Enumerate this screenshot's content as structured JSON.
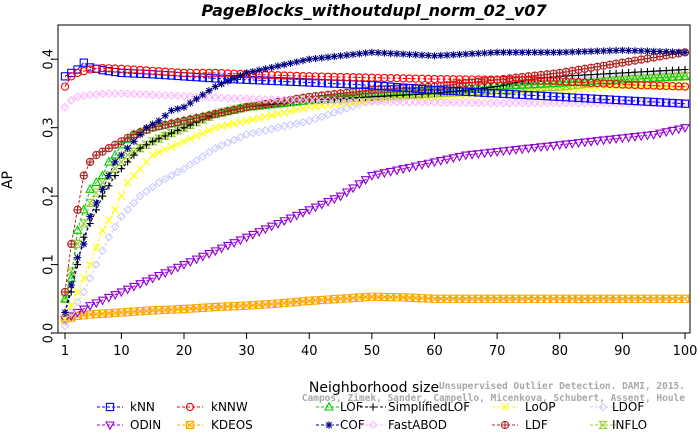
{
  "chart_data": {
    "type": "line",
    "title": "PageBlocks_withoutdupl_norm_02_v07",
    "xlabel": "Neighborhood size",
    "ylabel": "AP",
    "xlim": [
      1,
      100
    ],
    "ylim": [
      0,
      0.45
    ],
    "xticks": [
      1,
      10,
      20,
      30,
      40,
      50,
      60,
      70,
      80,
      90,
      100
    ],
    "yticks": [
      0.0,
      0.1,
      0.2,
      0.3,
      0.4
    ],
    "ytick_labels": [
      "0.0",
      "0.1",
      "0.2",
      "0.3",
      "0.4"
    ],
    "grid": false,
    "legend_position": "bottom",
    "watermark": "Unsupervised Outlier Detection. DAMI, 2015. Campos, Zimek, Sander, Campello, Micenkova, Schubert, Assent, Houle",
    "series": [
      {
        "name": "kNN",
        "color": "#0000ff",
        "marker": "square",
        "points": [
          [
            1,
            0.375
          ],
          [
            2,
            0.38
          ],
          [
            3,
            0.385
          ],
          [
            4,
            0.395
          ],
          [
            5,
            0.388
          ],
          [
            7,
            0.384
          ],
          [
            10,
            0.38
          ],
          [
            15,
            0.378
          ],
          [
            20,
            0.375
          ],
          [
            25,
            0.372
          ],
          [
            30,
            0.37
          ],
          [
            40,
            0.366
          ],
          [
            50,
            0.362
          ],
          [
            60,
            0.355
          ],
          [
            70,
            0.35
          ],
          [
            80,
            0.345
          ],
          [
            90,
            0.34
          ],
          [
            100,
            0.335
          ]
        ]
      },
      {
        "name": "kNNW",
        "color": "#ff0000",
        "marker": "circle",
        "points": [
          [
            1,
            0.36
          ],
          [
            2,
            0.375
          ],
          [
            3,
            0.38
          ],
          [
            5,
            0.385
          ],
          [
            7,
            0.387
          ],
          [
            10,
            0.386
          ],
          [
            15,
            0.383
          ],
          [
            20,
            0.38
          ],
          [
            25,
            0.38
          ],
          [
            30,
            0.378
          ],
          [
            40,
            0.375
          ],
          [
            50,
            0.373
          ],
          [
            60,
            0.371
          ],
          [
            70,
            0.37
          ],
          [
            80,
            0.368
          ],
          [
            90,
            0.363
          ],
          [
            100,
            0.36
          ]
        ]
      },
      {
        "name": "LOF",
        "color": "#00cc00",
        "marker": "triangle-up",
        "points": [
          [
            1,
            0.05
          ],
          [
            2,
            0.08
          ],
          [
            3,
            0.15
          ],
          [
            4,
            0.18
          ],
          [
            5,
            0.21
          ],
          [
            6,
            0.22
          ],
          [
            7,
            0.23
          ],
          [
            8,
            0.25
          ],
          [
            9,
            0.26
          ],
          [
            10,
            0.275
          ],
          [
            12,
            0.29
          ],
          [
            15,
            0.3
          ],
          [
            20,
            0.31
          ],
          [
            25,
            0.32
          ],
          [
            30,
            0.33
          ],
          [
            40,
            0.34
          ],
          [
            50,
            0.35
          ],
          [
            60,
            0.355
          ],
          [
            70,
            0.36
          ],
          [
            80,
            0.365
          ],
          [
            90,
            0.37
          ],
          [
            100,
            0.375
          ]
        ]
      },
      {
        "name": "SimplifiedLOF",
        "color": "#000000",
        "marker": "plus",
        "points": [
          [
            1,
            0.03
          ],
          [
            2,
            0.06
          ],
          [
            3,
            0.1
          ],
          [
            4,
            0.14
          ],
          [
            5,
            0.16
          ],
          [
            7,
            0.2
          ],
          [
            9,
            0.23
          ],
          [
            11,
            0.25
          ],
          [
            13,
            0.27
          ],
          [
            15,
            0.28
          ],
          [
            20,
            0.3
          ],
          [
            25,
            0.32
          ],
          [
            30,
            0.33
          ],
          [
            35,
            0.335
          ],
          [
            40,
            0.34
          ],
          [
            50,
            0.345
          ],
          [
            60,
            0.35
          ],
          [
            70,
            0.36
          ],
          [
            75,
            0.37
          ],
          [
            80,
            0.375
          ],
          [
            90,
            0.38
          ],
          [
            100,
            0.385
          ]
        ]
      },
      {
        "name": "LoOP",
        "color": "#ffff00",
        "marker": "x",
        "points": [
          [
            1,
            0.02
          ],
          [
            2,
            0.04
          ],
          [
            3,
            0.06
          ],
          [
            5,
            0.1
          ],
          [
            7,
            0.15
          ],
          [
            9,
            0.18
          ],
          [
            11,
            0.22
          ],
          [
            13,
            0.24
          ],
          [
            15,
            0.26
          ],
          [
            20,
            0.28
          ],
          [
            25,
            0.3
          ],
          [
            30,
            0.31
          ],
          [
            40,
            0.33
          ],
          [
            50,
            0.34
          ],
          [
            60,
            0.345
          ],
          [
            70,
            0.35
          ],
          [
            80,
            0.355
          ],
          [
            90,
            0.36
          ],
          [
            100,
            0.36
          ]
        ]
      },
      {
        "name": "LDOF",
        "color": "#ccccff",
        "marker": "diamond",
        "points": [
          [
            1,
            0.01
          ],
          [
            2,
            0.03
          ],
          [
            4,
            0.06
          ],
          [
            6,
            0.1
          ],
          [
            8,
            0.14
          ],
          [
            10,
            0.17
          ],
          [
            13,
            0.2
          ],
          [
            16,
            0.22
          ],
          [
            20,
            0.24
          ],
          [
            25,
            0.27
          ],
          [
            30,
            0.29
          ],
          [
            35,
            0.3
          ],
          [
            40,
            0.31
          ],
          [
            50,
            0.34
          ],
          [
            60,
            0.35
          ],
          [
            70,
            0.36
          ],
          [
            80,
            0.37
          ],
          [
            90,
            0.375
          ],
          [
            100,
            0.38
          ]
        ]
      },
      {
        "name": "ODIN",
        "color": "#9400d3",
        "marker": "triangle-down",
        "points": [
          [
            1,
            0.02
          ],
          [
            5,
            0.04
          ],
          [
            10,
            0.06
          ],
          [
            15,
            0.08
          ],
          [
            20,
            0.1
          ],
          [
            25,
            0.12
          ],
          [
            30,
            0.14
          ],
          [
            35,
            0.16
          ],
          [
            40,
            0.18
          ],
          [
            45,
            0.2
          ],
          [
            50,
            0.23
          ],
          [
            55,
            0.24
          ],
          [
            60,
            0.25
          ],
          [
            65,
            0.26
          ],
          [
            70,
            0.265
          ],
          [
            75,
            0.27
          ],
          [
            80,
            0.275
          ],
          [
            85,
            0.28
          ],
          [
            90,
            0.285
          ],
          [
            95,
            0.29
          ],
          [
            100,
            0.3
          ]
        ]
      },
      {
        "name": "KDEOS",
        "color": "#ffa500",
        "marker": "square-x",
        "points": [
          [
            1,
            0.02
          ],
          [
            3,
            0.025
          ],
          [
            5,
            0.027
          ],
          [
            10,
            0.03
          ],
          [
            15,
            0.033
          ],
          [
            20,
            0.035
          ],
          [
            25,
            0.038
          ],
          [
            30,
            0.04
          ],
          [
            35,
            0.043
          ],
          [
            40,
            0.047
          ],
          [
            45,
            0.05
          ],
          [
            50,
            0.053
          ],
          [
            55,
            0.052
          ],
          [
            60,
            0.05
          ],
          [
            70,
            0.05
          ],
          [
            80,
            0.05
          ],
          [
            90,
            0.05
          ],
          [
            100,
            0.05
          ]
        ]
      },
      {
        "name": "COF",
        "color": "#000080",
        "marker": "asterisk",
        "points": [
          [
            1,
            0.03
          ],
          [
            2,
            0.07
          ],
          [
            3,
            0.11
          ],
          [
            4,
            0.13
          ],
          [
            5,
            0.17
          ],
          [
            6,
            0.19
          ],
          [
            7,
            0.21
          ],
          [
            8,
            0.23
          ],
          [
            9,
            0.25
          ],
          [
            10,
            0.26
          ],
          [
            12,
            0.28
          ],
          [
            14,
            0.3
          ],
          [
            16,
            0.31
          ],
          [
            18,
            0.325
          ],
          [
            20,
            0.33
          ],
          [
            25,
            0.36
          ],
          [
            30,
            0.38
          ],
          [
            35,
            0.39
          ],
          [
            40,
            0.4
          ],
          [
            50,
            0.41
          ],
          [
            60,
            0.405
          ],
          [
            70,
            0.41
          ],
          [
            80,
            0.41
          ],
          [
            90,
            0.413
          ],
          [
            100,
            0.41
          ]
        ]
      },
      {
        "name": "FastABOD",
        "color": "#ffb6ff",
        "marker": "diamond",
        "points": [
          [
            1,
            0.33
          ],
          [
            2,
            0.34
          ],
          [
            3,
            0.345
          ],
          [
            5,
            0.348
          ],
          [
            8,
            0.35
          ],
          [
            10,
            0.35
          ],
          [
            15,
            0.348
          ],
          [
            20,
            0.346
          ],
          [
            25,
            0.344
          ],
          [
            30,
            0.342
          ],
          [
            40,
            0.34
          ],
          [
            50,
            0.338
          ],
          [
            60,
            0.337
          ],
          [
            70,
            0.336
          ],
          [
            80,
            0.336
          ],
          [
            90,
            0.336
          ],
          [
            100,
            0.336
          ]
        ]
      },
      {
        "name": "LDF",
        "color": "#b22222",
        "marker": "circle-plus",
        "points": [
          [
            1,
            0.06
          ],
          [
            2,
            0.13
          ],
          [
            3,
            0.18
          ],
          [
            4,
            0.23
          ],
          [
            5,
            0.25
          ],
          [
            6,
            0.26
          ],
          [
            8,
            0.27
          ],
          [
            10,
            0.28
          ],
          [
            12,
            0.29
          ],
          [
            15,
            0.3
          ],
          [
            20,
            0.31
          ],
          [
            25,
            0.32
          ],
          [
            30,
            0.33
          ],
          [
            40,
            0.345
          ],
          [
            50,
            0.355
          ],
          [
            60,
            0.36
          ],
          [
            70,
            0.37
          ],
          [
            80,
            0.38
          ],
          [
            90,
            0.395
          ],
          [
            100,
            0.41
          ]
        ]
      },
      {
        "name": "INFLO",
        "color": "#9acd32",
        "marker": "hourglass",
        "points": [
          [
            1,
            0.05
          ],
          [
            2,
            0.09
          ],
          [
            3,
            0.13
          ],
          [
            4,
            0.16
          ],
          [
            5,
            0.19
          ],
          [
            7,
            0.22
          ],
          [
            9,
            0.24
          ],
          [
            11,
            0.26
          ],
          [
            13,
            0.27
          ],
          [
            15,
            0.28
          ],
          [
            20,
            0.3
          ],
          [
            25,
            0.32
          ],
          [
            30,
            0.33
          ],
          [
            40,
            0.34
          ],
          [
            50,
            0.345
          ],
          [
            60,
            0.35
          ],
          [
            70,
            0.355
          ],
          [
            80,
            0.36
          ],
          [
            90,
            0.37
          ],
          [
            100,
            0.375
          ]
        ]
      }
    ]
  }
}
